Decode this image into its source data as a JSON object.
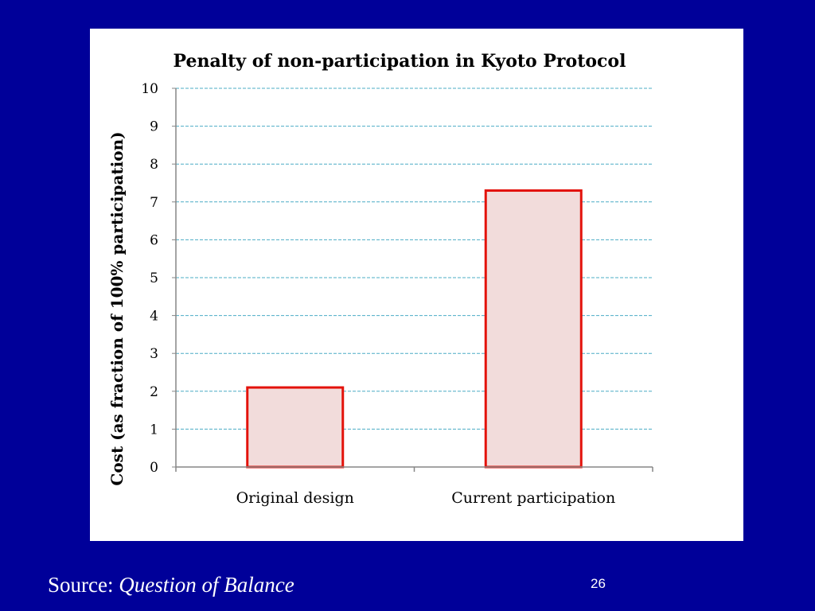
{
  "slide": {
    "source_prefix": "Source:",
    "source_title": "Question of Balance",
    "page_number": "26"
  },
  "colors": {
    "background": "#000099",
    "panel": "#ffffff",
    "bar_fill": "#f2dcdb",
    "bar_stroke": "#e3120b",
    "gridline": "#4bacc6"
  },
  "chart_data": {
    "type": "bar",
    "title": "Penalty of non-participation in Kyoto Protocol",
    "ylabel": "Cost (as fraction of 100% participation)",
    "xlabel": "",
    "categories": [
      "Original design",
      "Current participation"
    ],
    "values": [
      2.1,
      7.3
    ],
    "ylim": [
      0,
      10
    ],
    "yticks": [
      "0",
      "1",
      "2",
      "3",
      "4",
      "5",
      "6",
      "7",
      "8",
      "9",
      "10"
    ],
    "grid": true,
    "legend": "none"
  }
}
